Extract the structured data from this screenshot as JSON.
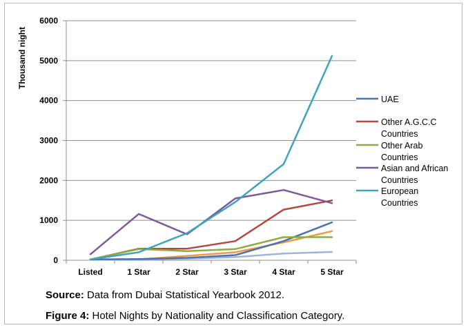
{
  "chart_data": {
    "type": "line",
    "title": "",
    "xlabel": "",
    "ylabel": "Thousand night",
    "ylim": [
      0,
      6000
    ],
    "yticks": [
      0,
      1000,
      2000,
      3000,
      4000,
      5000,
      6000
    ],
    "categories": [
      "Listed",
      "1 Star",
      "2 Star",
      "3 Star",
      "4 Star",
      "5 Star"
    ],
    "legend_position": "right",
    "grid": "horizontal",
    "series": [
      {
        "name": "UAE",
        "color": "#4a72b0",
        "legend": true,
        "values": [
          20,
          30,
          60,
          130,
          480,
          950
        ]
      },
      {
        "name": "Other A.G.C.C Countries",
        "color": "#b5473f",
        "legend": true,
        "values": [
          20,
          290,
          290,
          480,
          1270,
          1500
        ]
      },
      {
        "name": "Other Arab Countries",
        "color": "#8cac43",
        "legend": true,
        "values": [
          20,
          280,
          230,
          280,
          580,
          580
        ]
      },
      {
        "name": "Asian and African Countries",
        "color": "#7a5a9c",
        "legend": true,
        "values": [
          150,
          1160,
          650,
          1550,
          1760,
          1430
        ]
      },
      {
        "name": "European Countries",
        "color": "#3fa3bc",
        "legend": true,
        "values": [
          20,
          200,
          680,
          1460,
          2410,
          5120
        ]
      },
      {
        "color": "#f09a45",
        "legend": false,
        "values": [
          10,
          20,
          110,
          200,
          450,
          730
        ]
      },
      {
        "color": "#9db5de",
        "legend": false,
        "values": [
          10,
          20,
          40,
          80,
          170,
          210
        ]
      }
    ]
  },
  "caption": {
    "source_label": "Source:",
    "source_text": " Data from Dubai Statistical Yearbook 2012.",
    "figure_label": "Figure 4:",
    "figure_text": " Hotel Nights by Nationality and Classification Category."
  }
}
